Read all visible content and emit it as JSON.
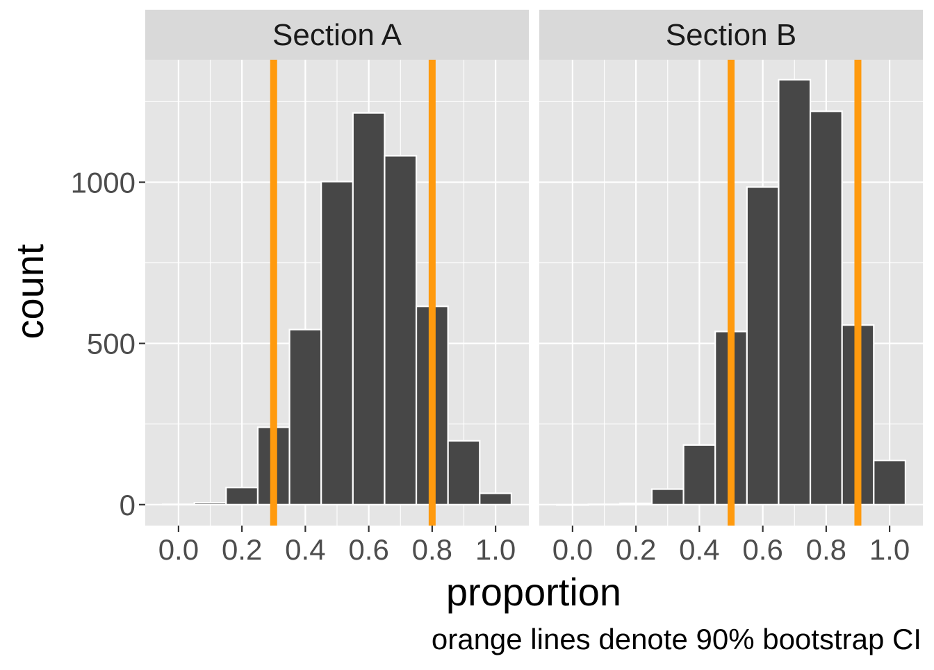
{
  "chart_data": {
    "type": "bar",
    "subtype": "faceted-histogram",
    "xlabel": "proportion",
    "ylabel": "count",
    "caption": "orange lines denote 90% bootstrap CI",
    "x_ticks": [
      "0.0",
      "0.2",
      "0.4",
      "0.6",
      "0.8",
      "1.0"
    ],
    "x_tick_values": [
      0.0,
      0.2,
      0.4,
      0.6,
      0.8,
      1.0
    ],
    "y_ticks": [
      "0",
      "500",
      "1000"
    ],
    "y_tick_values": [
      0,
      500,
      1000
    ],
    "xlim": [
      -0.105,
      1.105
    ],
    "ylim": [
      -65,
      1380
    ],
    "bin_width": 0.1,
    "grid": true,
    "colors": {
      "bar_fill": "#474747",
      "bar_outline": "#ffffff",
      "ci_line": "#ff9a0e",
      "panel_background": "#e5e5e5",
      "strip_background": "#d9d9d9",
      "grid": "#ffffff"
    },
    "facets": [
      {
        "strip_label": "Section A",
        "bins": [
          0.0,
          0.1,
          0.2,
          0.3,
          0.4,
          0.5,
          0.6,
          0.7,
          0.8,
          0.9,
          1.0
        ],
        "counts": [
          1,
          6,
          53,
          240,
          543,
          1002,
          1215,
          1082,
          615,
          198,
          35
        ],
        "ci": [
          0.3,
          0.8
        ]
      },
      {
        "strip_label": "Section B",
        "bins": [
          0.0,
          0.1,
          0.2,
          0.3,
          0.4,
          0.5,
          0.6,
          0.7,
          0.8,
          0.9,
          1.0
        ],
        "counts": [
          0,
          1,
          4,
          48,
          185,
          537,
          985,
          1318,
          1220,
          557,
          137
        ],
        "ci": [
          0.5,
          0.9
        ]
      }
    ]
  }
}
